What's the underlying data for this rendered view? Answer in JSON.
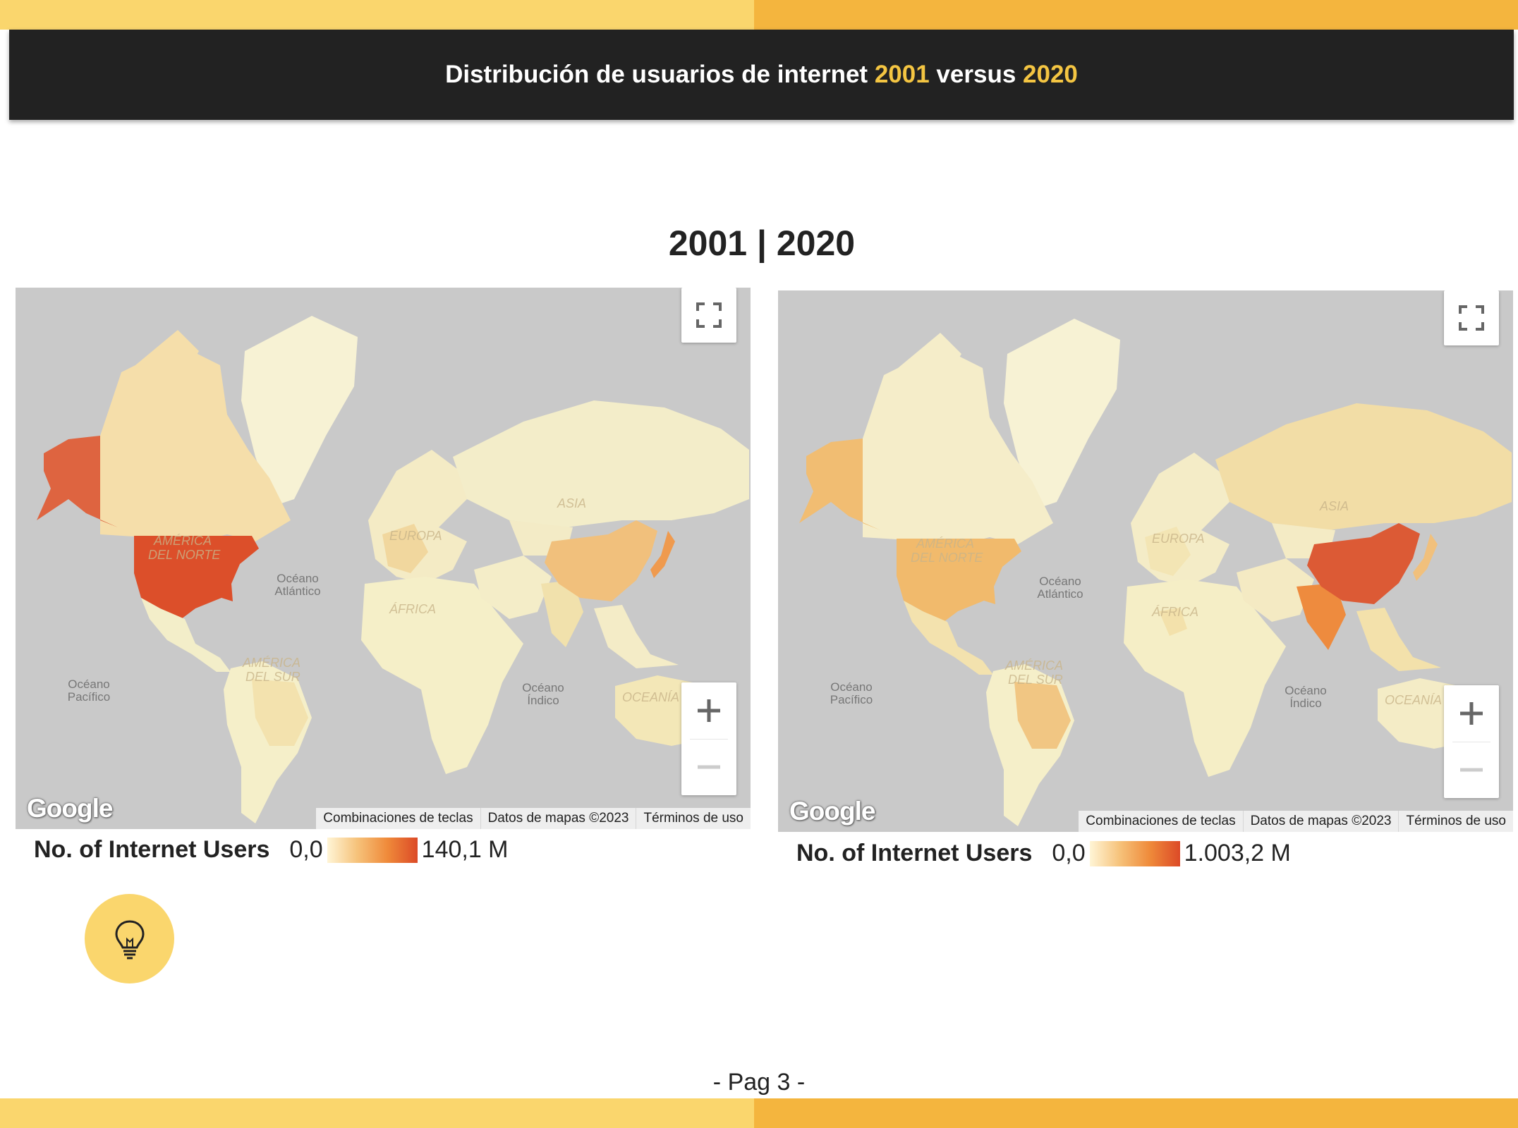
{
  "header": {
    "title_prefix": "Distribución de usuarios de internet ",
    "year_a": "2001",
    "title_middle": " versus ",
    "year_b": "2020"
  },
  "section_title": "2001 | 2020",
  "maps": [
    {
      "year": "2001",
      "labels": {
        "north_america": [
          "AMÉRICA",
          "DEL NORTE"
        ],
        "europe": "EUROPA",
        "asia": "ASIA",
        "africa": "ÁFRICA",
        "south_america": [
          "AMÉRICA",
          "DEL SUR"
        ],
        "oceania": "OCEANÍA",
        "atlantic": [
          "Océano",
          "Atlántico"
        ],
        "pacific": [
          "Océano",
          "Pacífico"
        ],
        "indian": [
          "Océano",
          "Índico"
        ]
      },
      "attribution": [
        "Combinaciones de teclas",
        "Datos de mapas ©2023",
        "Términos de uso"
      ],
      "logo": "Google",
      "legend": {
        "title": "No. of Internet Users",
        "min": "0,0",
        "max": "140,1 M"
      }
    },
    {
      "year": "2020",
      "labels": {
        "north_america": [
          "AMÉRICA",
          "DEL NORTE"
        ],
        "europe": "EUROPA",
        "asia": "ASIA",
        "africa": "ÁFRICA",
        "south_america": [
          "AMÉRICA",
          "DEL SUR"
        ],
        "oceania": "OCEANÍA",
        "atlantic": [
          "Océano",
          "Atlántico"
        ],
        "pacific": [
          "Océano",
          "Pacífico"
        ],
        "indian": [
          "Océano",
          "Índico"
        ]
      },
      "attribution": [
        "Combinaciones de teclas",
        "Datos de mapas ©2023",
        "Términos de uso"
      ],
      "logo": "Google",
      "legend": {
        "title": "No. of Internet Users",
        "min": "0,0",
        "max": "1.003,2 M"
      }
    }
  ],
  "colors": {
    "bar_light": "#fad66d",
    "bar_dark": "#f4b53e",
    "header_bg": "#222222",
    "highlight": "#f4c542",
    "ocean": "#c9c9c9",
    "scale_low": "#fff5d6",
    "scale_high": "#dc4a27"
  },
  "page": "- Pag 3 -"
}
